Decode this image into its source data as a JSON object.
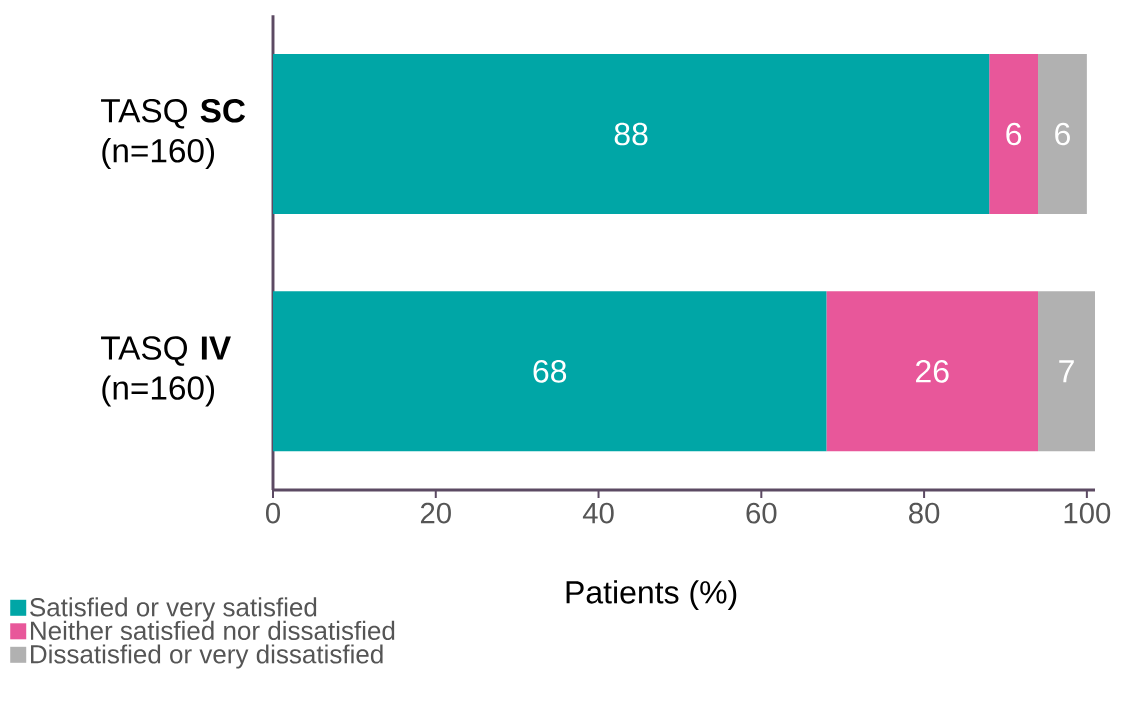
{
  "chart_data": {
    "type": "bar",
    "orientation": "horizontal",
    "stacked": true,
    "xlabel": "Patients (%)",
    "categories": [
      "TASQ **SC** (n=160)",
      "TASQ **IV** (n=160)"
    ],
    "series": [
      {
        "name": "Satisfied or very satisfied",
        "color": "#00a6a6",
        "values": [
          88,
          68
        ]
      },
      {
        "name": "Neither satisfied nor dissatisfied",
        "color": "#e8579a",
        "values": [
          6,
          26
        ]
      },
      {
        "name": "Dissatisfied or very dissatisfied",
        "color": "#b1b1b1",
        "values": [
          6,
          7
        ]
      }
    ],
    "xlim": [
      0,
      101
    ],
    "xticks": [
      0,
      20,
      40,
      60,
      80,
      100
    ],
    "data_labels": true,
    "legend": "bottom left",
    "grid": false
  }
}
